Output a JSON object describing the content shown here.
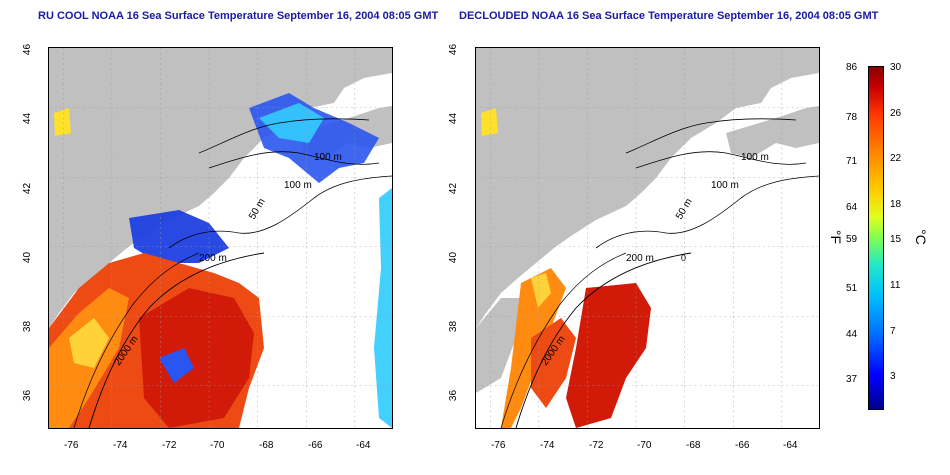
{
  "titles": {
    "left": "RU COOL NOAA 16 Sea Surface Temperature September 16, 2004 08:05 GMT",
    "right": "DECLOUDED NOAA 16 Sea Surface Temperature September 16, 2004 08:05 GMT"
  },
  "axes": {
    "lon_ticks": [
      "-76",
      "-74",
      "-72",
      "-70",
      "-68",
      "-66",
      "-64"
    ],
    "lat_ticks": [
      "46",
      "44",
      "42",
      "40",
      "38",
      "36"
    ]
  },
  "contour_labels": [
    "100 m",
    "100 m",
    "50 m",
    "200 m",
    "50 m",
    "2000 m",
    "0"
  ],
  "colorbar": {
    "fahrenheit_ticks": [
      "86",
      "78",
      "71",
      "64",
      "59",
      "51",
      "44",
      "37"
    ],
    "celsius_ticks": [
      "30",
      "26",
      "22",
      "18",
      "15",
      "11",
      "7",
      "3"
    ],
    "fahrenheit_unit": "°F",
    "celsius_unit": "°C"
  },
  "colors": {
    "land": "#c0c0c0",
    "cloud": "#ffffff",
    "title": "#1a1aa6",
    "grid": "#9a9a9a"
  }
}
